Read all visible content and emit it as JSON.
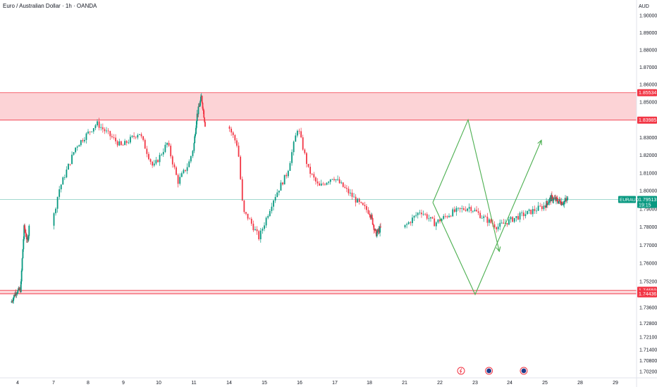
{
  "chart_data": {
    "type": "candlestick",
    "title": "Euro / Australian Dollar · 1h · OANDA",
    "currency": "AUD",
    "y_axis": {
      "ticks": [
        1.702,
        1.708,
        1.714,
        1.721,
        1.728,
        1.736,
        1.752,
        1.76,
        1.77,
        1.78,
        1.79,
        1.8,
        1.81,
        1.82,
        1.83,
        1.84,
        1.85,
        1.86,
        1.87,
        1.88,
        1.89,
        1.9
      ],
      "tick_labels": [
        "1.70200",
        "1.70800",
        "1.71400",
        "1.72100",
        "1.72800",
        "1.73600",
        "1.75200",
        "1.76000",
        "1.77000",
        "1.78000",
        "1.79000",
        "1.80000",
        "1.81000",
        "1.82000",
        "1.83000",
        "1.84000",
        "1.85000",
        "1.86000",
        "1.87000",
        "1.88000",
        "1.89000",
        "1.90000"
      ]
    },
    "x_axis": {
      "labels": [
        "4",
        "7",
        "8",
        "9",
        "10",
        "11",
        "14",
        "15",
        "16",
        "17",
        "18",
        "21",
        "22",
        "23",
        "24",
        "25",
        "28",
        "29"
      ]
    },
    "zones": [
      {
        "name": "resistance",
        "top": 1.85534,
        "bottom": 1.83985,
        "top_label": "1.85534",
        "bottom_label": "1.83985",
        "color": "#f23645"
      },
      {
        "name": "support",
        "top": 1.74659,
        "bottom": 1.74436,
        "top_label": "1.74659",
        "bottom_label": "1.74436",
        "color": "#f23645"
      }
    ],
    "current_price": {
      "symbol": "EURAUD",
      "value": 1.79513,
      "value_label": "1.79513",
      "countdown": "19:15",
      "color": "#089981"
    },
    "projection": {
      "color": "#4caf50",
      "paths": [
        [
          [
            21.8,
            1.7935
          ],
          [
            22.8,
            1.84
          ],
          [
            23.7,
            1.7665
          ]
        ],
        [
          [
            21.8,
            1.7935
          ],
          [
            23.0,
            1.744
          ],
          [
            24.9,
            1.8285
          ]
        ]
      ]
    },
    "up_color": "#089981",
    "down_color": "#f23645",
    "event_markers": [
      {
        "day": 22.6,
        "type": "flash"
      },
      {
        "day": 23.4,
        "type": "flag"
      },
      {
        "day": 24.4,
        "type": "flag"
      }
    ]
  }
}
